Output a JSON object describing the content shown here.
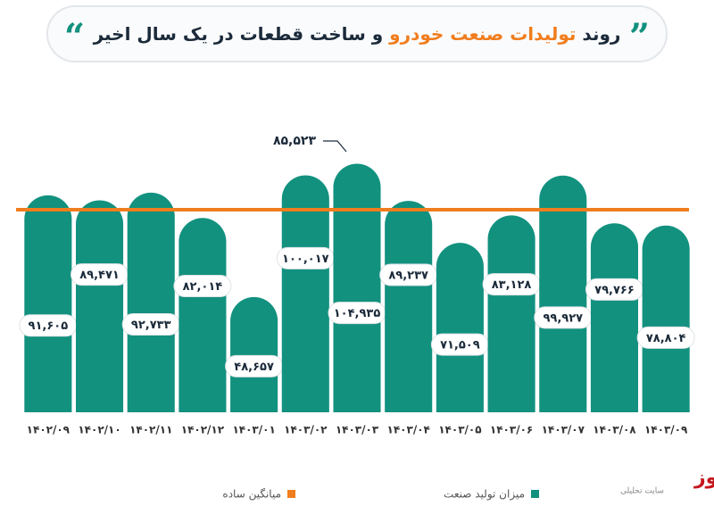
{
  "chart_data": {
    "type": "bar",
    "title": {
      "start": "روند",
      "highlight": "تولیدات صنعت خودرو",
      "end": "و ساخت قطعات در یک سال اخیر"
    },
    "categories": [
      "۱۴۰۲/۰۹",
      "۱۴۰۲/۱۰",
      "۱۴۰۲/۱۱",
      "۱۴۰۲/۱۲",
      "۱۴۰۳/۰۱",
      "۱۴۰۳/۰۲",
      "۱۴۰۳/۰۳",
      "۱۴۰۳/۰۴",
      "۱۴۰۳/۰۵",
      "۱۴۰۳/۰۶",
      "۱۴۰۳/۰۷",
      "۱۴۰۳/۰۸",
      "۱۴۰۳/۰۹"
    ],
    "series": [
      {
        "name": "میزان تولید صنعت",
        "color": "#12917f",
        "values": [
          91605,
          89471,
          92733,
          82014,
          48657,
          100017,
          104935,
          89237,
          71509,
          83128,
          99927,
          79766,
          78804
        ],
        "value_labels": [
          "۹۱,۶۰۵",
          "۸۹,۴۷۱",
          "۹۲,۷۳۳",
          "۸۲,۰۱۴",
          "۴۸,۶۵۷",
          "۱۰۰,۰۱۷",
          "۱۰۴,۹۳۵",
          "۸۹,۲۳۷",
          "۷۱,۵۰۹",
          "۸۳,۱۲۸",
          "۹۹,۹۲۷",
          "۷۹,۷۶۶",
          "۷۸,۸۰۴"
        ]
      }
    ],
    "average": {
      "name": "میانگین ساده",
      "color": "#f07d1e",
      "value": 85523,
      "value_label": "۸۵,۵۲۳"
    },
    "ylim": [
      0,
      110000
    ],
    "source": {
      "brand": "واناپیوز",
      "tagline": "سایت تحلیلی"
    }
  }
}
